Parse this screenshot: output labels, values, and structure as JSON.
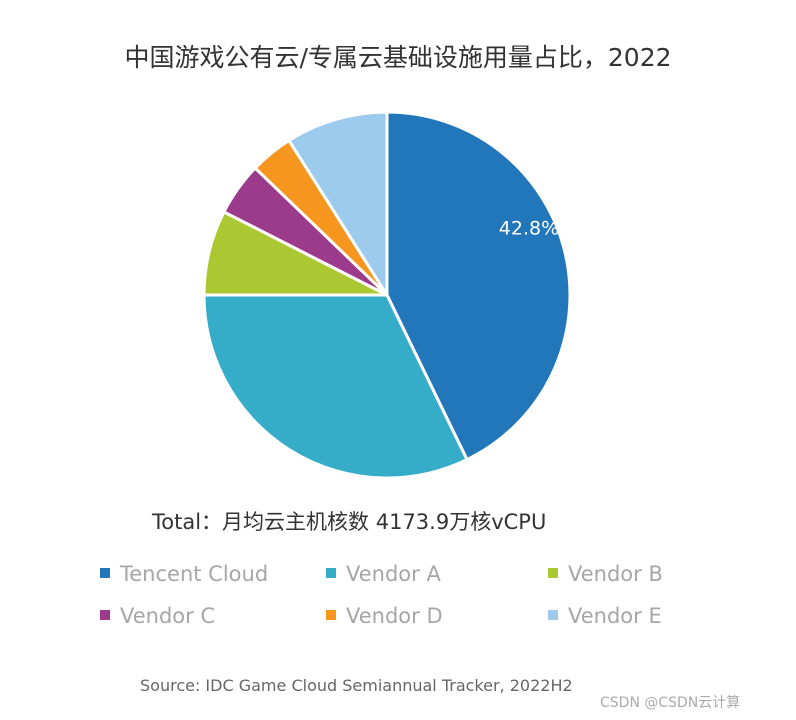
{
  "chart_data": {
    "type": "pie",
    "title": "中国游戏公有云/专属云基础设施用量占比，2022",
    "categories": [
      "Tencent Cloud",
      "Vendor A",
      "Vendor B",
      "Vendor C",
      "Vendor D",
      "Vendor E"
    ],
    "values": [
      42.8,
      32.2,
      7.5,
      4.7,
      3.8,
      9.0
    ],
    "colors": [
      "#2277bb",
      "#36adc8",
      "#abc832",
      "#9c3a8c",
      "#f7961e",
      "#9ccbee"
    ],
    "data_labels": [
      "42.8%"
    ],
    "legend_position": "bottom",
    "total_label": "Total：月均云主机核数 4173.9万核vCPU",
    "source": "Source: IDC Game Cloud Semiannual Tracker, 2022H2"
  },
  "watermark": "CSDN @CSDN云计算"
}
